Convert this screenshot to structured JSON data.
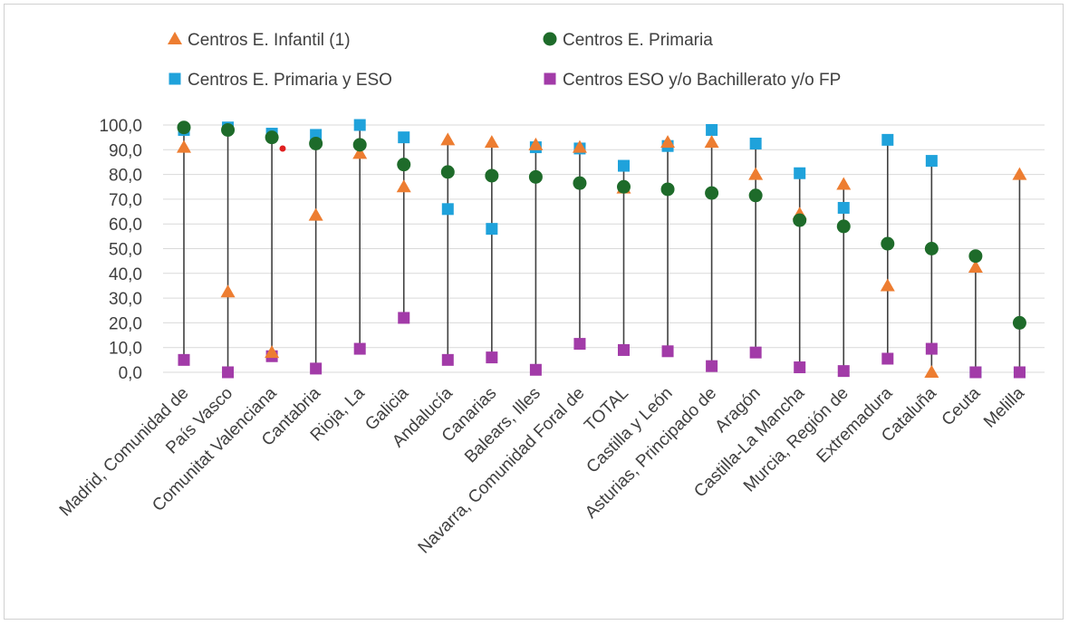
{
  "chart_data": {
    "type": "scatter",
    "title": "",
    "xlabel": "",
    "ylabel": "",
    "ylim": [
      0,
      100
    ],
    "yticks": [
      "0,0",
      "10,0",
      "20,0",
      "30,0",
      "40,0",
      "50,0",
      "60,0",
      "70,0",
      "80,0",
      "90,0",
      "100,0"
    ],
    "grid": true,
    "legend_position": "top",
    "categories": [
      "Madrid, Comunidad de",
      "País Vasco",
      "Comunitat Valenciana",
      "Cantabria",
      "Rioja, La",
      "Galicia",
      "Andalucía",
      "Canarias",
      "Balears, Illes",
      "Navarra, Comunidad Foral de",
      "TOTAL",
      "Castilla y León",
      "Asturias, Principado de",
      "Aragón",
      "Castilla-La Mancha",
      "Murcia, Región de",
      "Extremadura",
      "Cataluña",
      "Ceuta",
      "Melilla"
    ],
    "series": [
      {
        "name": "Centros E. Infantil (1)",
        "marker": "triangle",
        "color": "#ED7D31",
        "values": [
          91,
          32.5,
          8,
          63.5,
          88.5,
          75,
          94,
          93,
          92,
          91,
          74.5,
          93,
          93,
          80,
          64,
          76,
          35,
          0,
          42.5,
          80
        ]
      },
      {
        "name": "Centros E. Primaria",
        "marker": "circle",
        "color": "#1E6B2A",
        "values": [
          99,
          98,
          95,
          92.5,
          92,
          84,
          81,
          79.5,
          79,
          76.5,
          75,
          74,
          72.5,
          71.5,
          61.5,
          59,
          52,
          50,
          47,
          20
        ]
      },
      {
        "name": "Centros E. Primaria y ESO",
        "marker": "square",
        "color": "#1FA2DB",
        "values": [
          98,
          99,
          96.5,
          96,
          100,
          95,
          66,
          58,
          91,
          90.5,
          83.5,
          91.5,
          98,
          92.5,
          80.5,
          66.5,
          94,
          85.5,
          0,
          0
        ]
      },
      {
        "name": "Centros ESO y/o Bachillerato y/o FP",
        "marker": "square",
        "color": "#A23BA8",
        "values": [
          5,
          0,
          6.5,
          1.5,
          9.5,
          22,
          5,
          6,
          1,
          11.5,
          9,
          8.5,
          2.5,
          8,
          2,
          0.5,
          5.5,
          9.5,
          0,
          0
        ]
      }
    ],
    "drop_lines": {
      "color": "#404040",
      "note": ""
    }
  }
}
